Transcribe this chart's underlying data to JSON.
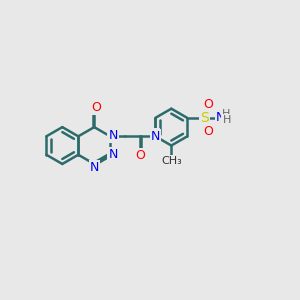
{
  "background_color": "#e8e8e8",
  "bond_color": "#2d6b6b",
  "bond_width": 1.8,
  "atom_colors": {
    "N": "#0000ee",
    "O": "#ff0000",
    "S": "#cccc00",
    "H": "#666666"
  },
  "font_size": 9,
  "xlim": [
    0,
    10
  ],
  "ylim": [
    0,
    10
  ]
}
